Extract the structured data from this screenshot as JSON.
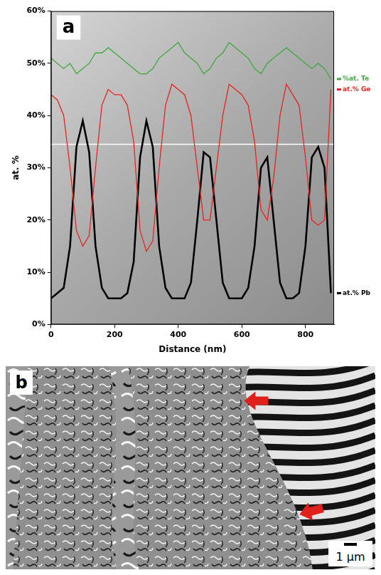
{
  "chart_data": {
    "type": "line",
    "panel_label": "a",
    "x_label": "Distance (nm)",
    "y_label": "at. %",
    "x": [
      0,
      20,
      40,
      60,
      80,
      100,
      120,
      140,
      160,
      180,
      200,
      220,
      240,
      260,
      280,
      300,
      320,
      340,
      360,
      380,
      400,
      420,
      440,
      460,
      480,
      500,
      520,
      540,
      560,
      580,
      600,
      620,
      640,
      660,
      680,
      700,
      720,
      740,
      760,
      780,
      800,
      820,
      840,
      860,
      880
    ],
    "series": [
      {
        "name": "%at. Te",
        "color": "#3fa83f",
        "values": [
          51,
          50,
          49,
          50,
          48,
          49,
          50,
          52,
          52,
          53,
          52,
          51,
          50,
          49,
          48,
          48,
          49,
          51,
          52,
          53,
          54,
          52,
          51,
          50,
          48,
          49,
          51,
          52,
          54,
          53,
          52,
          51,
          49,
          48,
          50,
          51,
          52,
          53,
          52,
          51,
          50,
          49,
          50,
          49,
          47
        ]
      },
      {
        "name": "at.% Ge",
        "color": "#e8231f",
        "values": [
          44,
          43,
          40,
          30,
          18,
          15,
          17,
          30,
          42,
          45,
          44,
          44,
          42,
          35,
          18,
          14,
          16,
          30,
          42,
          46,
          45,
          44,
          40,
          30,
          20,
          20,
          30,
          40,
          46,
          45,
          44,
          42,
          35,
          22,
          20,
          28,
          40,
          46,
          44,
          42,
          32,
          20,
          19,
          20,
          45
        ]
      },
      {
        "name": "at.% Pb",
        "color": "#000000",
        "values": [
          5,
          6,
          7,
          15,
          34,
          39,
          33,
          15,
          7,
          5,
          5,
          5,
          6,
          12,
          32,
          39,
          34,
          15,
          7,
          5,
          5,
          5,
          8,
          20,
          33,
          32,
          20,
          8,
          5,
          5,
          5,
          7,
          15,
          30,
          32,
          20,
          8,
          5,
          5,
          6,
          15,
          32,
          34,
          30,
          6
        ]
      }
    ],
    "reference_line": 34.5,
    "xlim": [
      0,
      890
    ],
    "xticks": [
      0,
      200,
      400,
      600,
      800
    ],
    "ylim": [
      0,
      60
    ],
    "yticks": [
      {
        "value": 0,
        "label": "0%"
      },
      {
        "value": 10,
        "label": "10%"
      },
      {
        "value": 20,
        "label": "20%"
      },
      {
        "value": 30,
        "label": "30%"
      },
      {
        "value": 40,
        "label": "40%"
      },
      {
        "value": 50,
        "label": "50%"
      },
      {
        "value": 60,
        "label": "60%"
      }
    ],
    "grid": false,
    "legend": "right"
  },
  "image_panel": {
    "panel_label": "b",
    "scale_bar": "1 µm"
  }
}
